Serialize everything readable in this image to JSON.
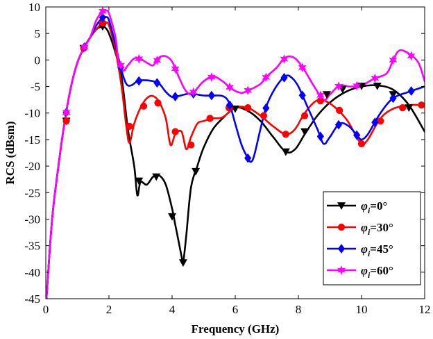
{
  "chart_data": {
    "type": "line",
    "xlabel": "Frequency (GHz)",
    "ylabel": "RCS (dBsm)",
    "xlim": [
      0,
      12
    ],
    "ylim": [
      -45,
      10
    ],
    "xticks": [
      0,
      2,
      4,
      6,
      8,
      10,
      12
    ],
    "yticks": [
      10,
      5,
      0,
      -5,
      -10,
      -15,
      -20,
      -25,
      -30,
      -35,
      -40,
      -45
    ],
    "grid": false,
    "legend_position": "bottom-right",
    "series": [
      {
        "name": "φi=0°",
        "legend_symbol": "φ",
        "legend_sub": "i",
        "legend_value": "=0°",
        "color": "#000000",
        "marker": "triangle-down",
        "x": [
          0.02,
          0.2,
          0.4,
          0.6,
          0.8,
          1.0,
          1.2,
          1.4,
          1.6,
          1.8,
          1.9,
          2.0,
          2.2,
          2.4,
          2.6,
          2.8,
          2.9,
          3.0,
          3.2,
          3.4,
          3.6,
          3.8,
          4.0,
          4.1,
          4.2,
          4.3,
          4.35,
          4.45,
          4.6,
          4.8,
          5.0,
          5.3,
          5.6,
          6.0,
          6.4,
          6.8,
          7.2,
          7.6,
          7.9,
          8.2,
          8.6,
          9.0,
          9.5,
          10.0,
          10.5,
          11.0,
          11.5,
          12.0
        ],
        "y": [
          -45,
          -30,
          -20,
          -11.5,
          -5,
          -0.5,
          2.2,
          4.2,
          5.8,
          6.3,
          6.0,
          5.0,
          1.5,
          -3.2,
          -13,
          -20,
          -25.5,
          -23,
          -23.5,
          -22,
          -21.8,
          -23.5,
          -28,
          -31,
          -34,
          -37,
          -38.2,
          -33,
          -24,
          -20,
          -16.5,
          -13,
          -11,
          -9,
          -9.6,
          -11.5,
          -14.5,
          -17.3,
          -16.8,
          -14,
          -10.5,
          -8,
          -6,
          -5,
          -4.8,
          -5.6,
          -8.5,
          -13.5
        ],
        "marker_x": [
          0.65,
          1.2,
          1.8,
          2.95,
          3.5,
          4.0,
          4.35,
          4.75,
          6.0,
          7.6,
          8.2,
          8.9,
          9.4,
          10.0,
          10.5,
          11.0,
          11.5
        ],
        "marker_y": [
          -11.5,
          2.2,
          6.3,
          -22.8,
          -22,
          -29.5,
          -38.2,
          -21,
          -9.2,
          -17.3,
          -13.5,
          -6.5,
          -5.5,
          -4.9,
          -4.9,
          -6.5,
          -9
        ]
      },
      {
        "name": "φi=30°",
        "legend_symbol": "φ",
        "legend_sub": "i",
        "legend_value": "=30°",
        "color": "#ff0000",
        "marker": "circle",
        "x": [
          0.02,
          0.2,
          0.4,
          0.6,
          0.8,
          1.0,
          1.2,
          1.4,
          1.6,
          1.8,
          1.9,
          2.0,
          2.2,
          2.4,
          2.55,
          2.65,
          2.8,
          3.0,
          3.2,
          3.4,
          3.6,
          3.8,
          3.95,
          4.1,
          4.3,
          4.45,
          4.6,
          4.8,
          5.0,
          5.3,
          5.6,
          6.0,
          6.4,
          6.8,
          7.2,
          7.6,
          7.9,
          8.2,
          8.6,
          9.0,
          9.5,
          9.8,
          10.0,
          10.2,
          10.6,
          11.0,
          11.5,
          12.0
        ],
        "y": [
          -45,
          -30,
          -20,
          -11.5,
          -5,
          -0.5,
          2.2,
          4.2,
          5.8,
          7.0,
          7.1,
          6.5,
          2.0,
          -5,
          -12.5,
          -15.6,
          -12,
          -9,
          -7.2,
          -6.8,
          -8,
          -11,
          -16,
          -14,
          -13.5,
          -16.8,
          -14.5,
          -12,
          -11.5,
          -11,
          -10.8,
          -9,
          -9,
          -10.5,
          -12.5,
          -14,
          -13,
          -10,
          -7.6,
          -8.2,
          -11,
          -14,
          -15.8,
          -15,
          -11,
          -9.2,
          -8.5,
          -8.5
        ],
        "marker_x": [
          0.65,
          1.2,
          1.8,
          2.65,
          3.1,
          3.55,
          4.1,
          4.6,
          5.2,
          5.8,
          6.4,
          6.9,
          7.6,
          8.2,
          8.7,
          9.3,
          10.0,
          10.6,
          11.3,
          11.9
        ],
        "marker_y": [
          -11.5,
          2.2,
          7.0,
          -12.5,
          -8.7,
          -8.1,
          -13.5,
          -16,
          -11,
          -9,
          -9,
          -10.5,
          -14,
          -10.5,
          -7.7,
          -9.5,
          -15.8,
          -11.5,
          -9,
          -8.5
        ]
      },
      {
        "name": "φi=45°",
        "legend_symbol": "φ",
        "legend_sub": "i",
        "legend_value": "=45°",
        "color": "#0000ff",
        "marker": "diamond",
        "x": [
          0.02,
          0.2,
          0.4,
          0.6,
          0.8,
          1.0,
          1.2,
          1.4,
          1.6,
          1.8,
          1.9,
          2.0,
          2.2,
          2.4,
          2.55,
          2.7,
          2.9,
          3.1,
          3.4,
          3.6,
          3.8,
          4.0,
          4.2,
          4.4,
          4.6,
          4.8,
          5.0,
          5.3,
          5.6,
          5.8,
          6.0,
          6.2,
          6.4,
          6.5,
          6.6,
          6.8,
          7.0,
          7.3,
          7.6,
          7.8,
          8.0,
          8.3,
          8.6,
          8.8,
          9.0,
          9.3,
          9.6,
          9.9,
          10.0,
          10.2,
          10.6,
          11.0,
          11.5,
          12.0
        ],
        "y": [
          -45,
          -30,
          -20,
          -11.5,
          -5,
          -0.5,
          2.2,
          4.2,
          6.5,
          8.0,
          8.1,
          7.5,
          3.0,
          -2,
          -4.5,
          -4.8,
          -4,
          -3.8,
          -4,
          -4.5,
          -6,
          -7,
          -6.8,
          -6.5,
          -6.3,
          -6.5,
          -6.7,
          -6.7,
          -6.8,
          -8,
          -12,
          -16,
          -18.5,
          -19.2,
          -18,
          -13,
          -8.5,
          -5,
          -3,
          -3.4,
          -5,
          -9,
          -13,
          -15.8,
          -14.5,
          -12,
          -12.5,
          -14.5,
          -15,
          -14,
          -10,
          -7.2,
          -6,
          -5
        ]
      },
      {
        "name": "φi=60°",
        "legend_symbol": "φ",
        "legend_sub": "i",
        "legend_value": "=60°",
        "color": "#ff00ff",
        "marker": "hexagram",
        "x": [
          0.02,
          0.2,
          0.4,
          0.6,
          0.8,
          1.0,
          1.2,
          1.4,
          1.6,
          1.8,
          1.9,
          2.0,
          2.2,
          2.3,
          2.45,
          2.6,
          2.8,
          3.0,
          3.2,
          3.4,
          3.6,
          3.8,
          4.0,
          4.2,
          4.4,
          4.6,
          4.8,
          5.0,
          5.3,
          5.6,
          5.9,
          6.2,
          6.5,
          6.8,
          7.0,
          7.3,
          7.6,
          7.9,
          8.2,
          8.5,
          8.8,
          9.0,
          9.3,
          9.6,
          10.0,
          10.4,
          10.8,
          11.0,
          11.2,
          11.5,
          11.8,
          12.0
        ],
        "y": [
          -45,
          -30,
          -20,
          -11.5,
          -5,
          -0.5,
          2.2,
          4.2,
          7.5,
          9.2,
          9.3,
          8.8,
          4.5,
          0,
          -2,
          -1,
          0.3,
          0.2,
          -0.5,
          -1,
          0.5,
          0.7,
          -0.3,
          -3,
          -5.5,
          -6.5,
          -5.3,
          -4,
          -3.1,
          -4,
          -5.5,
          -6.2,
          -5.5,
          -4.5,
          -3.1,
          -1.5,
          0.5,
          0.3,
          -2,
          -5,
          -7.5,
          -6.5,
          -4.8,
          -5,
          -4.8,
          -3.5,
          -2.5,
          0,
          1.8,
          1.2,
          -0.5,
          -4
        ]
      }
    ]
  }
}
